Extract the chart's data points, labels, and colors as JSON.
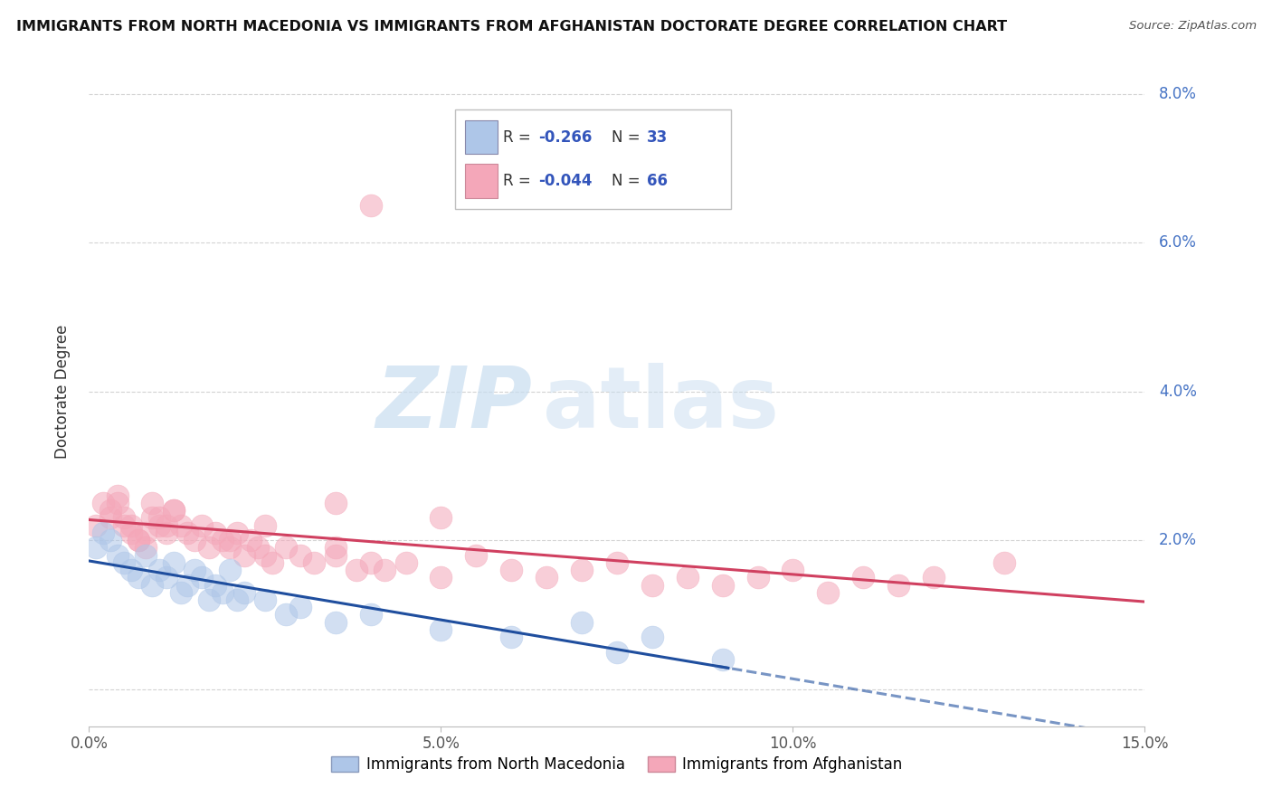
{
  "title": "IMMIGRANTS FROM NORTH MACEDONIA VS IMMIGRANTS FROM AFGHANISTAN DOCTORATE DEGREE CORRELATION CHART",
  "source": "Source: ZipAtlas.com",
  "ylabel": "Doctorate Degree",
  "x_min": 0.0,
  "x_max": 0.15,
  "y_min": -0.005,
  "y_max": 0.085,
  "x_ticks": [
    0.0,
    0.05,
    0.1,
    0.15
  ],
  "x_tick_labels": [
    "0.0%",
    "5.0%",
    "10.0%",
    "15.0%"
  ],
  "y_ticks": [
    0.0,
    0.02,
    0.04,
    0.06,
    0.08
  ],
  "y_tick_labels_right": [
    "",
    "2.0%",
    "4.0%",
    "6.0%",
    "8.0%"
  ],
  "legend_label_1": "Immigrants from North Macedonia",
  "legend_label_2": "Immigrants from Afghanistan",
  "r1": -0.266,
  "n1": 33,
  "r2": -0.044,
  "n2": 66,
  "color_blue": "#aec6e8",
  "color_pink": "#f4a7b9",
  "trendline_blue": "#1f4e9e",
  "trendline_pink": "#d04060",
  "background_color": "#ffffff",
  "grid_color": "#c8c8c8",
  "tick_color": "#4472c4",
  "blue_x": [
    0.001,
    0.002,
    0.003,
    0.004,
    0.005,
    0.006,
    0.007,
    0.008,
    0.009,
    0.01,
    0.011,
    0.012,
    0.013,
    0.014,
    0.015,
    0.016,
    0.017,
    0.018,
    0.019,
    0.02,
    0.021,
    0.022,
    0.025,
    0.028,
    0.03,
    0.035,
    0.04,
    0.05,
    0.06,
    0.07,
    0.075,
    0.08,
    0.09
  ],
  "blue_y": [
    0.019,
    0.021,
    0.02,
    0.018,
    0.017,
    0.016,
    0.015,
    0.018,
    0.014,
    0.016,
    0.015,
    0.017,
    0.013,
    0.014,
    0.016,
    0.015,
    0.012,
    0.014,
    0.013,
    0.016,
    0.012,
    0.013,
    0.012,
    0.01,
    0.011,
    0.009,
    0.01,
    0.008,
    0.007,
    0.009,
    0.005,
    0.007,
    0.004
  ],
  "pink_x": [
    0.001,
    0.002,
    0.003,
    0.004,
    0.005,
    0.006,
    0.007,
    0.008,
    0.009,
    0.01,
    0.011,
    0.012,
    0.013,
    0.014,
    0.015,
    0.016,
    0.017,
    0.018,
    0.019,
    0.02,
    0.021,
    0.022,
    0.023,
    0.024,
    0.025,
    0.026,
    0.028,
    0.03,
    0.032,
    0.035,
    0.038,
    0.04,
    0.042,
    0.045,
    0.05,
    0.055,
    0.06,
    0.065,
    0.07,
    0.075,
    0.08,
    0.085,
    0.09,
    0.095,
    0.1,
    0.105,
    0.11,
    0.115,
    0.12,
    0.13,
    0.003,
    0.004,
    0.005,
    0.006,
    0.007,
    0.008,
    0.009,
    0.01,
    0.011,
    0.012,
    0.04,
    0.05,
    0.025,
    0.035,
    0.02,
    0.035
  ],
  "pink_y": [
    0.022,
    0.025,
    0.024,
    0.026,
    0.023,
    0.022,
    0.02,
    0.021,
    0.023,
    0.022,
    0.021,
    0.024,
    0.022,
    0.021,
    0.02,
    0.022,
    0.019,
    0.021,
    0.02,
    0.019,
    0.021,
    0.018,
    0.02,
    0.019,
    0.018,
    0.017,
    0.019,
    0.018,
    0.017,
    0.018,
    0.016,
    0.017,
    0.016,
    0.017,
    0.015,
    0.018,
    0.016,
    0.015,
    0.016,
    0.017,
    0.014,
    0.015,
    0.014,
    0.015,
    0.016,
    0.013,
    0.015,
    0.014,
    0.015,
    0.017,
    0.023,
    0.025,
    0.022,
    0.021,
    0.02,
    0.019,
    0.025,
    0.023,
    0.022,
    0.024,
    0.065,
    0.023,
    0.022,
    0.019,
    0.02,
    0.025
  ]
}
